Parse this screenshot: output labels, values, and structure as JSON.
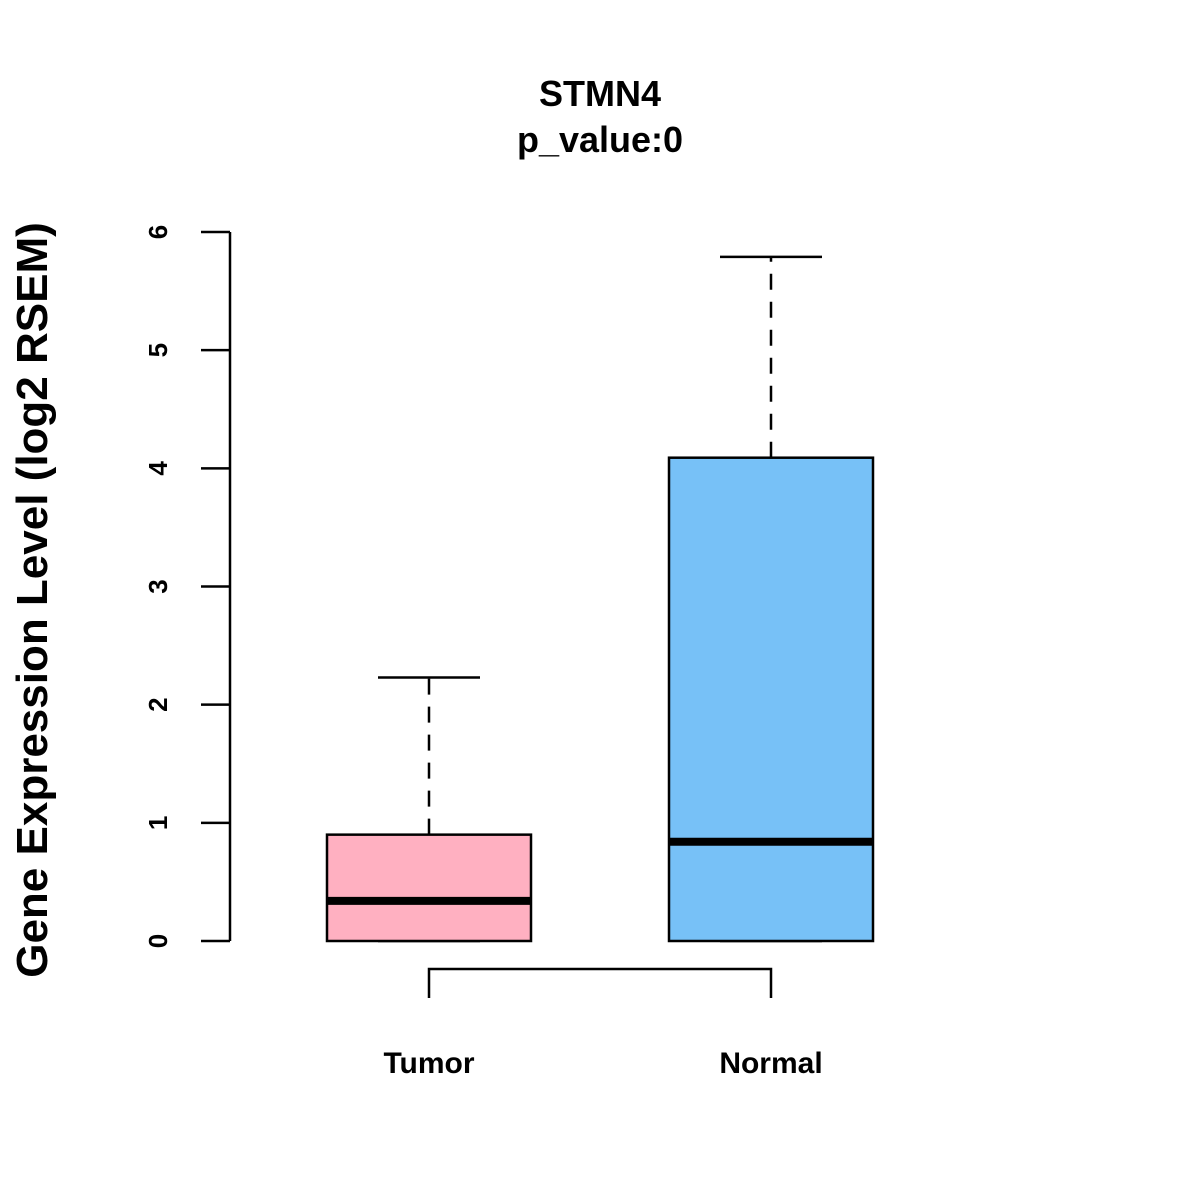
{
  "chart_data": {
    "type": "boxplot",
    "title": "STMN4",
    "subtitle": "p_value:0",
    "xlabel": "",
    "ylabel": "Gene Expression Level (log2 RSEM)",
    "ylim": [
      0,
      6
    ],
    "yticks": [
      0,
      1,
      2,
      3,
      4,
      5,
      6
    ],
    "categories": [
      "Tumor",
      "Normal"
    ],
    "boxes": [
      {
        "name": "Tumor",
        "min": 0,
        "q1": 0,
        "median": 0.34,
        "q3": 0.9,
        "max": 2.23,
        "color": "#FFB0C1"
      },
      {
        "name": "Normal",
        "min": 0,
        "q1": 0,
        "median": 0.84,
        "q3": 4.09,
        "max": 5.79,
        "color": "#77C1F7"
      }
    ],
    "comparison_bracket": [
      "Tumor",
      "Normal"
    ]
  }
}
